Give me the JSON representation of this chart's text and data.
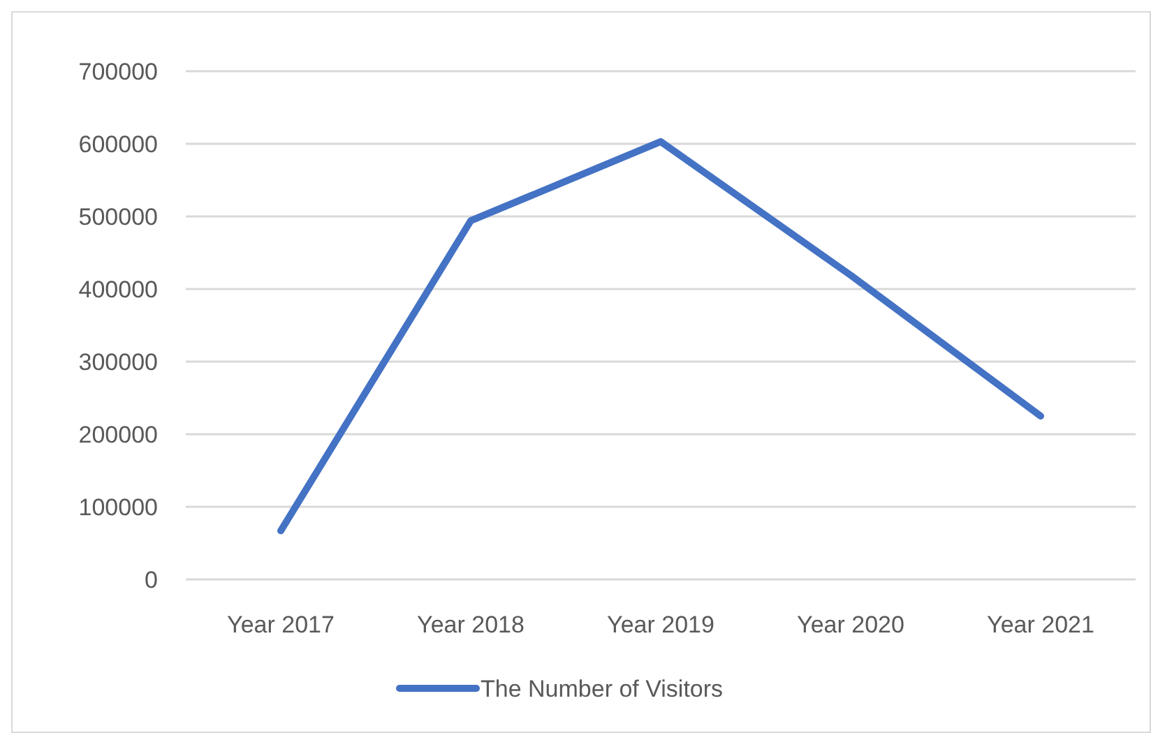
{
  "chart_data": {
    "type": "line",
    "categories": [
      "Year 2017",
      "Year 2018",
      "Year 2019",
      "Year 2020",
      "Year 2021"
    ],
    "series": [
      {
        "name": "The Number of Visitors",
        "color": "#4472c4",
        "values": [
          67000,
          494000,
          603000,
          419000,
          225000
        ]
      }
    ],
    "ylim": [
      0,
      700000
    ],
    "yticks": [
      0,
      100000,
      200000,
      300000,
      400000,
      500000,
      600000,
      700000
    ],
    "grid": "y",
    "legend": "bottom",
    "marker": "none",
    "line_style": "solid"
  }
}
